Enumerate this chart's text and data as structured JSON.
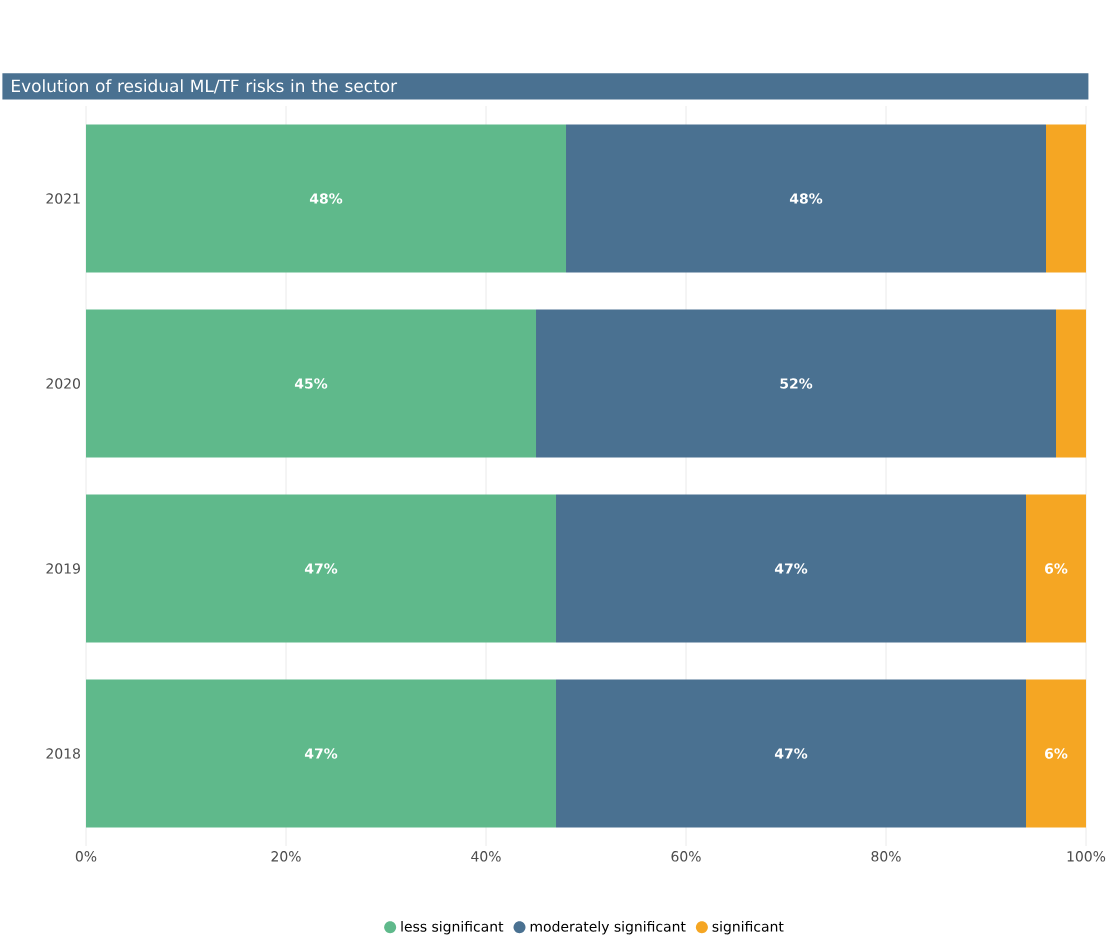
{
  "chart_data": {
    "type": "bar",
    "title": "Evolution of residual ML/TF risks in the sector",
    "orientation": "horizontal",
    "stacked": true,
    "categories": [
      "2021",
      "2020",
      "2019",
      "2018"
    ],
    "series": [
      {
        "name": "less significant",
        "color": "#5fb98b",
        "values": [
          48,
          45,
          47,
          47
        ],
        "value_labels": [
          "48%",
          "45%",
          "47%",
          "47%"
        ]
      },
      {
        "name": "moderately significant",
        "color": "#4a7191",
        "values": [
          48,
          52,
          47,
          47
        ],
        "value_labels": [
          "48%",
          "52%",
          "47%",
          "47%"
        ]
      },
      {
        "name": "significant",
        "color": "#f5a623",
        "values": [
          4,
          3,
          6,
          6
        ],
        "value_labels": [
          null,
          null,
          "6%",
          "6%"
        ]
      }
    ],
    "xlim": [
      0,
      100
    ],
    "xticks": [
      {
        "value": 0,
        "label": "0%"
      },
      {
        "value": 20,
        "label": "20%"
      },
      {
        "value": 40,
        "label": "40%"
      },
      {
        "value": 60,
        "label": "60%"
      },
      {
        "value": 80,
        "label": "80%"
      },
      {
        "value": 100,
        "label": "100%"
      }
    ],
    "grid": "x",
    "legend": "bottom"
  }
}
